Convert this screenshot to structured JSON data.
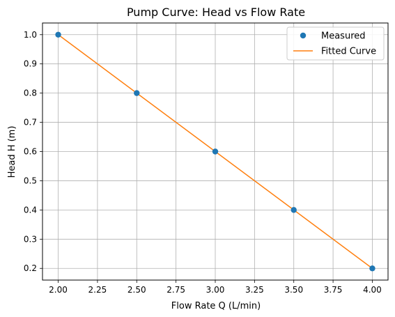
{
  "chart_data": {
    "type": "scatter",
    "title": "Pump Curve: Head vs Flow Rate",
    "xlabel": "Flow Rate Q (L/min)",
    "ylabel": "Head H (m)",
    "xlim": [
      1.9,
      4.1
    ],
    "ylim": [
      0.16,
      1.04
    ],
    "grid": true,
    "legend_position": "top-right",
    "x_ticks": [
      "2.00",
      "2.25",
      "2.50",
      "2.75",
      "3.00",
      "3.25",
      "3.50",
      "3.75",
      "4.00"
    ],
    "y_ticks": [
      "0.2",
      "0.3",
      "0.4",
      "0.5",
      "0.6",
      "0.7",
      "0.8",
      "0.9",
      "1.0"
    ],
    "series": [
      {
        "name": "Measured",
        "kind": "points",
        "color": "#1f77b4",
        "x": [
          2.0,
          2.5,
          3.0,
          3.5,
          4.0
        ],
        "y": [
          1.0,
          0.8,
          0.6,
          0.4,
          0.2
        ]
      },
      {
        "name": "Fitted Curve",
        "kind": "line",
        "color": "#ff7f0e",
        "x": [
          2.0,
          4.0
        ],
        "y": [
          1.0,
          0.2
        ]
      }
    ]
  }
}
